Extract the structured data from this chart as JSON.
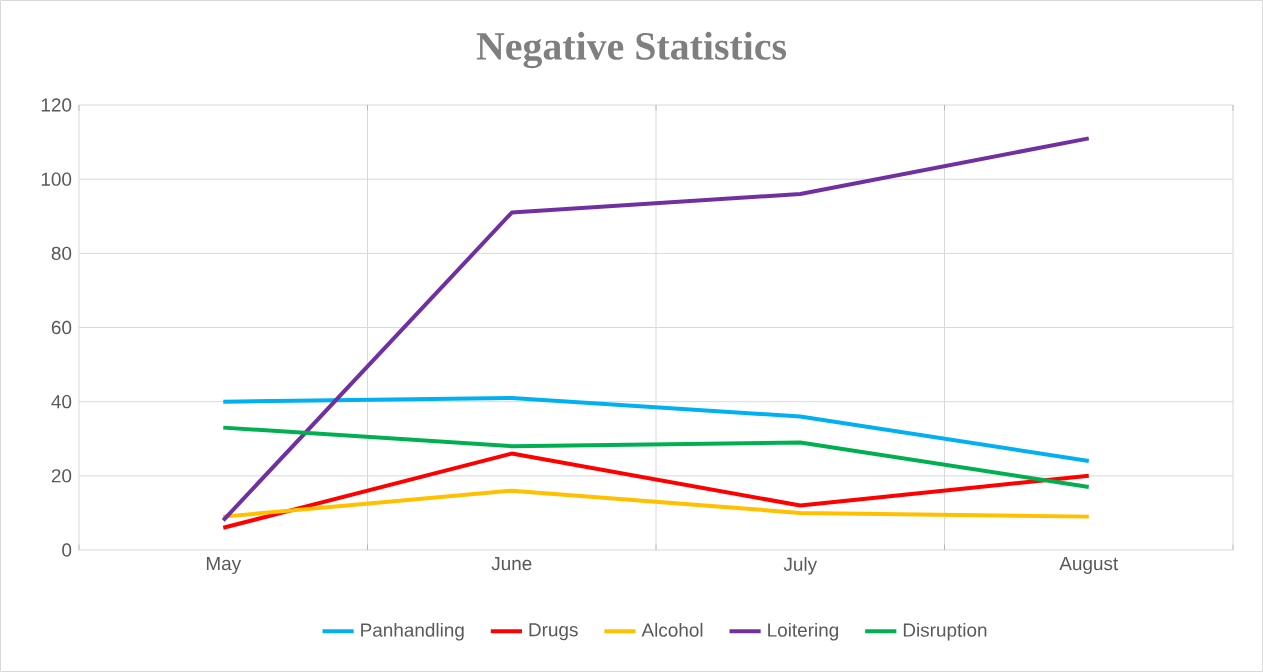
{
  "chart_data": {
    "type": "line",
    "title": "Negative Statistics",
    "categories": [
      "May",
      "June",
      "July",
      "August"
    ],
    "series": [
      {
        "name": "Panhandling",
        "color": "#00b0f0",
        "values": [
          40,
          41,
          36,
          24
        ]
      },
      {
        "name": "Drugs",
        "color": "#ff0000",
        "values": [
          6,
          26,
          12,
          20
        ]
      },
      {
        "name": "Alcohol",
        "color": "#ffc000",
        "values": [
          9,
          16,
          10,
          9
        ]
      },
      {
        "name": "Loitering",
        "color": "#7030a0",
        "values": [
          8,
          91,
          96,
          111
        ]
      },
      {
        "name": "Disruption",
        "color": "#00b050",
        "values": [
          33,
          28,
          29,
          17
        ]
      }
    ],
    "ylim": [
      0,
      120
    ],
    "yticks": [
      0,
      20,
      40,
      60,
      80,
      100,
      120
    ],
    "grid": true,
    "legend": "bottom",
    "marker": "none",
    "line_style": "solid"
  }
}
